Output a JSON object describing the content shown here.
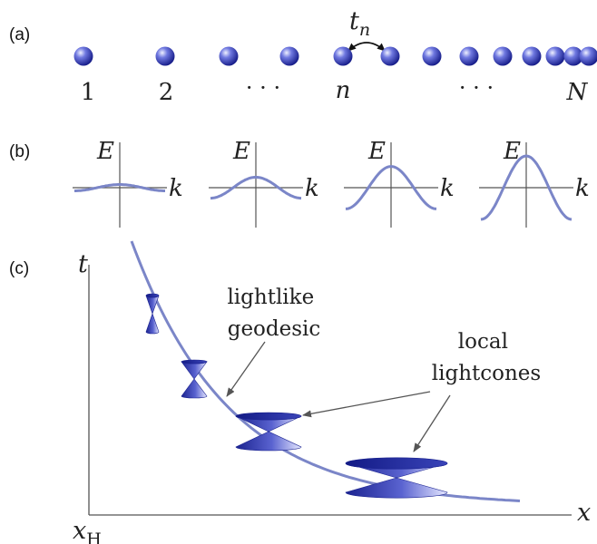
{
  "panels": {
    "a": {
      "label": "(a)",
      "hopping_label_base": "t",
      "hopping_label_sub": "n",
      "site_labels": [
        "1",
        "2",
        "· · ·",
        "n",
        "· · ·",
        "N"
      ],
      "site_count": 13
    },
    "b": {
      "label": "(b)",
      "energy_label": "E",
      "momentum_label": "k",
      "band_amplitudes": [
        0.1,
        0.33,
        0.67,
        1.0
      ],
      "plot_count": 4
    },
    "c": {
      "label": "(c)",
      "t_axis_label": "t",
      "x_axis_label": "x",
      "horizon_label_base": "x",
      "horizon_label_sub": "H",
      "geodesic_label": [
        "lightlike",
        "geodesic"
      ],
      "lightcones_label": [
        "local",
        "lightcones"
      ],
      "lightcone_count": 4
    }
  },
  "colors": {
    "accent": "#7b86c8",
    "sphere_dark": "#10168a",
    "sphere_mid": "#4a55d0",
    "sphere_light": "#e4e6ff",
    "axis": "#555555",
    "text": "#222222"
  }
}
